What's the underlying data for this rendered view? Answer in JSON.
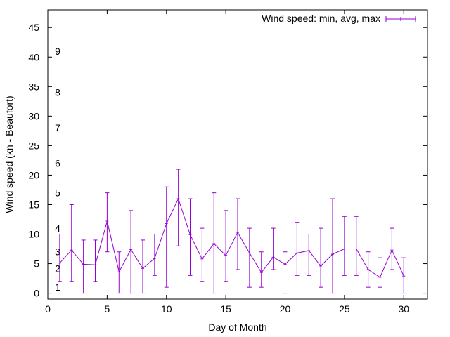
{
  "chart_data": {
    "type": "line",
    "title": "",
    "xlabel": "Day of Month",
    "ylabel": "Wind speed (kn - Beaufort)",
    "xlim": [
      0,
      32
    ],
    "ylim": [
      -1,
      48
    ],
    "x_ticks": [
      0,
      5,
      10,
      15,
      20,
      25,
      30
    ],
    "y_ticks": [
      0,
      5,
      10,
      15,
      20,
      25,
      30,
      35,
      40,
      45
    ],
    "grid": false,
    "legend_position": "top-right",
    "series": [
      {
        "name": "Wind speed: min, avg, max",
        "color": "#9400d3",
        "style": "line with min/max error bars",
        "points": [
          {
            "x": 1,
            "y": 5.1,
            "min": 2,
            "max": 10
          },
          {
            "x": 2,
            "y": 7.3,
            "min": 2,
            "max": 15
          },
          {
            "x": 3,
            "y": 4.9,
            "min": 0,
            "max": 9
          },
          {
            "x": 4,
            "y": 4.8,
            "min": 2,
            "max": 9
          },
          {
            "x": 5,
            "y": 12.2,
            "min": 7,
            "max": 17
          },
          {
            "x": 6,
            "y": 3.6,
            "min": 0,
            "max": 7
          },
          {
            "x": 7,
            "y": 7.4,
            "min": 0,
            "max": 14
          },
          {
            "x": 8,
            "y": 4.2,
            "min": 0,
            "max": 9
          },
          {
            "x": 9,
            "y": 5.9,
            "min": 3,
            "max": 10
          },
          {
            "x": 10,
            "y": 11.8,
            "min": 1,
            "max": 18
          },
          {
            "x": 11,
            "y": 16.0,
            "min": 8,
            "max": 21
          },
          {
            "x": 12,
            "y": 9.9,
            "min": 3,
            "max": 16
          },
          {
            "x": 13,
            "y": 5.8,
            "min": 2,
            "max": 11
          },
          {
            "x": 14,
            "y": 8.4,
            "min": 0,
            "max": 17
          },
          {
            "x": 15,
            "y": 6.4,
            "min": 2,
            "max": 14
          },
          {
            "x": 16,
            "y": 10.3,
            "min": 4,
            "max": 16
          },
          {
            "x": 17,
            "y": 6.8,
            "min": 1,
            "max": 11
          },
          {
            "x": 18,
            "y": 3.5,
            "min": 1,
            "max": 7
          },
          {
            "x": 19,
            "y": 6.1,
            "min": 4,
            "max": 11
          },
          {
            "x": 20,
            "y": 4.9,
            "min": 0,
            "max": 7
          },
          {
            "x": 21,
            "y": 6.8,
            "min": 3,
            "max": 12
          },
          {
            "x": 22,
            "y": 7.2,
            "min": 3,
            "max": 10
          },
          {
            "x": 23,
            "y": 4.6,
            "min": 1,
            "max": 11
          },
          {
            "x": 24,
            "y": 6.6,
            "min": 0,
            "max": 16
          },
          {
            "x": 25,
            "y": 7.5,
            "min": 3,
            "max": 13
          },
          {
            "x": 26,
            "y": 7.5,
            "min": 3,
            "max": 13
          },
          {
            "x": 27,
            "y": 4.0,
            "min": 1,
            "max": 7
          },
          {
            "x": 28,
            "y": 2.7,
            "min": 1,
            "max": 6
          },
          {
            "x": 29,
            "y": 7.3,
            "min": 4,
            "max": 11
          },
          {
            "x": 30,
            "y": 2.9,
            "min": 0,
            "max": 6
          }
        ]
      }
    ],
    "annotations": [
      {
        "text": "1",
        "x": 0.6,
        "y": 1.0
      },
      {
        "text": "2",
        "x": 0.6,
        "y": 4.2
      },
      {
        "text": "3",
        "x": 0.6,
        "y": 7.0
      },
      {
        "text": "4",
        "x": 0.6,
        "y": 11.0
      },
      {
        "text": "5",
        "x": 0.6,
        "y": 17.0
      },
      {
        "text": "6",
        "x": 0.6,
        "y": 22.0
      },
      {
        "text": "7",
        "x": 0.6,
        "y": 28.0
      },
      {
        "text": "8",
        "x": 0.6,
        "y": 34.0
      },
      {
        "text": "9",
        "x": 0.6,
        "y": 41.0
      }
    ]
  }
}
